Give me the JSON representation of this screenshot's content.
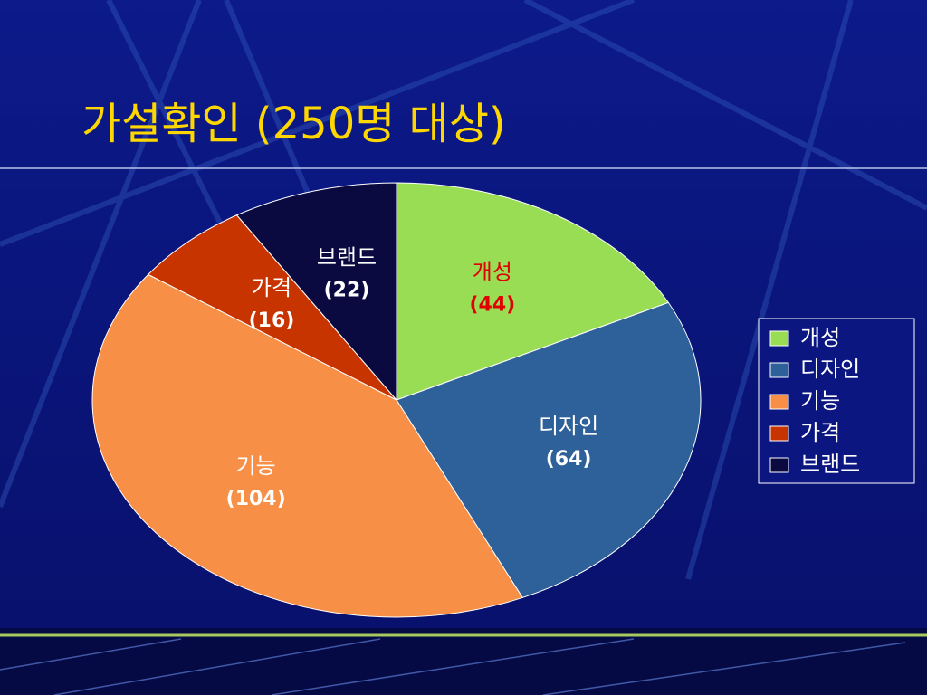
{
  "chart_data": {
    "type": "pie",
    "title": "가설확인 (250명 대상)",
    "categories": [
      "개성",
      "디자인",
      "기능",
      "가격",
      "브랜드"
    ],
    "values": [
      44,
      64,
      104,
      16,
      22
    ],
    "value_labels": [
      "(44)",
      "(64)",
      "(104)",
      "(16)",
      "(22)"
    ],
    "colors": [
      "#99dd55",
      "#2e6099",
      "#f79046",
      "#c83400",
      "#0a0a40"
    ],
    "label_colors": [
      "#e00000",
      "#ffffff",
      "#ffffff",
      "#ffffff",
      "#ffffff"
    ],
    "legend": "right"
  }
}
